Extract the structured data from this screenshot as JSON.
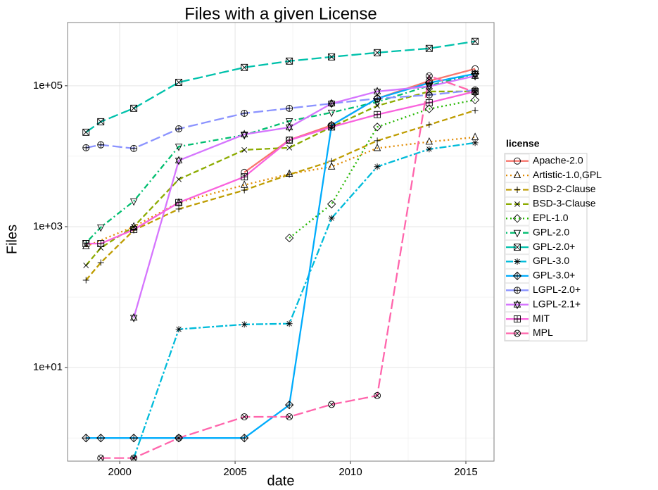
{
  "chart_data": {
    "type": "line",
    "title": "Files with a given License",
    "xlabel": "date",
    "ylabel": "Files",
    "log_y": true,
    "grid": true,
    "legend_title": "license",
    "legend_position": "right",
    "xlim": [
      1997.74,
      2016.22
    ],
    "xticks": [
      2000,
      2005,
      2010,
      2015
    ],
    "ylim": [
      0.47,
      790000
    ],
    "yticks": [
      {
        "value": 10,
        "label": "1e+01"
      },
      {
        "value": 1000,
        "label": "1e+03"
      },
      {
        "value": 100000,
        "label": "1e+05"
      }
    ],
    "series": [
      {
        "name": "Apache-2.0",
        "color": "#F8766D",
        "dash": "solid",
        "shape": "circle",
        "x": [
          2005.4,
          2007.35,
          2009.18,
          2011.16,
          2013.41,
          2015.4
        ],
        "values": [
          5900,
          17000,
          27500,
          66000,
          117000,
          174000
        ]
      },
      {
        "name": "Artistic-1.0,GPL",
        "color": "#E18A00",
        "dash": "dotted",
        "shape": "triangle",
        "x": [
          1998.54,
          2000.61,
          2002.56,
          2005.4,
          2007.35,
          2009.18,
          2011.16,
          2013.41,
          2015.4
        ],
        "values": [
          525,
          1000,
          2200,
          3900,
          5600,
          7100,
          13000,
          16000,
          18600
        ]
      },
      {
        "name": "BSD-2-Clause",
        "color": "#BE9C00",
        "dash": "dashed",
        "shape": "plus",
        "x": [
          1998.54,
          1999.18,
          2000.61,
          2002.56,
          2005.4,
          2007.35,
          2009.18,
          2011.16,
          2013.41,
          2015.4
        ],
        "values": [
          174,
          309,
          890,
          1780,
          3300,
          5500,
          8500,
          16600,
          28000,
          44700
        ]
      },
      {
        "name": "BSD-3-Clause",
        "color": "#8CAB00",
        "dash": "dashed",
        "shape": "cross",
        "x": [
          1998.54,
          1999.18,
          2000.61,
          2002.56,
          2005.4,
          2007.35,
          2009.18,
          2011.16,
          2013.41,
          2015.4
        ],
        "values": [
          282,
          500,
          1000,
          4700,
          12300,
          13200,
          26000,
          52000,
          83000,
          83000
        ]
      },
      {
        "name": "EPL-1.0",
        "color": "#24B700",
        "dash": "dotted",
        "shape": "diamond",
        "x": [
          2007.35,
          2009.18,
          2011.16,
          2013.41,
          2015.4
        ],
        "values": [
          690,
          2090,
          26000,
          47000,
          63000
        ]
      },
      {
        "name": "GPL-2.0",
        "color": "#00BE70",
        "dash": "dotdash",
        "shape": "triangle-down",
        "x": [
          1998.54,
          1999.18,
          2000.61,
          2002.56,
          2005.4,
          2007.35,
          2009.18,
          2011.16,
          2013.41,
          2015.4
        ],
        "values": [
          590,
          980,
          2300,
          13700,
          20000,
          31600,
          41700,
          59000,
          100000,
          148000
        ]
      },
      {
        "name": "GPL-2.0+",
        "color": "#00C1AB",
        "dash": "longdash",
        "shape": "square-cross",
        "x": [
          1998.54,
          1999.18,
          2000.61,
          2002.56,
          2005.4,
          2007.35,
          2009.18,
          2011.16,
          2013.41,
          2015.4
        ],
        "values": [
          21900,
          30900,
          47900,
          112000,
          182000,
          224000,
          257000,
          295000,
          339000,
          427000
        ]
      },
      {
        "name": "GPL-3.0",
        "color": "#00BBDA",
        "dash": "twodash",
        "shape": "asterisk",
        "x": [
          2000.61,
          2002.56,
          2005.4,
          2007.35,
          2009.18,
          2011.16,
          2013.41,
          2015.4
        ],
        "values": [
          0.52,
          35,
          41,
          42,
          1320,
          7100,
          12600,
          15500
        ]
      },
      {
        "name": "GPL-3.0+",
        "color": "#00ACFC",
        "dash": "solid",
        "shape": "diamond-plus",
        "x": [
          1998.54,
          1999.18,
          2000.61,
          2002.56,
          2005.4,
          2007.35,
          2009.18,
          2011.16,
          2013.41,
          2015.4
        ],
        "values": [
          1,
          1,
          1,
          1,
          1,
          2.95,
          27500,
          66000,
          110000,
          148000
        ]
      },
      {
        "name": "LGPL-2.0+",
        "color": "#8B93FF",
        "dash": "longdash",
        "shape": "circle-plus",
        "x": [
          1998.54,
          1999.18,
          2000.61,
          2002.56,
          2005.4,
          2007.35,
          2009.18,
          2011.16,
          2013.41,
          2015.4
        ],
        "values": [
          13200,
          14500,
          12900,
          24500,
          40700,
          47900,
          56000,
          66000,
          74000,
          87000
        ]
      },
      {
        "name": "LGPL-2.1+",
        "color": "#D575FE",
        "dash": "solid",
        "shape": "star",
        "x": [
          2000.61,
          2002.56,
          2005.4,
          2007.35,
          2009.18,
          2011.16,
          2013.41,
          2015.4
        ],
        "values": [
          51,
          8700,
          20400,
          25700,
          56000,
          83000,
          98000,
          138000
        ]
      },
      {
        "name": "MIT",
        "color": "#F962DD",
        "dash": "solid",
        "shape": "square-plus",
        "x": [
          1998.54,
          1999.18,
          2000.61,
          2002.56,
          2005.4,
          2007.35,
          2009.18,
          2011.16,
          2013.41,
          2015.4
        ],
        "values": [
          575,
          575,
          910,
          2200,
          5100,
          16900,
          26000,
          39000,
          57500,
          83000
        ]
      },
      {
        "name": "MPL",
        "color": "#FF65AC",
        "dash": "longdash",
        "shape": "circle-cross",
        "x": [
          1999.18,
          2000.61,
          2002.56,
          2005.4,
          2007.35,
          2009.18,
          2011.16,
          2013.41,
          2015.4
        ],
        "values": [
          0.52,
          0.52,
          1,
          2,
          2,
          3,
          4,
          138000,
          81000
        ]
      }
    ]
  }
}
